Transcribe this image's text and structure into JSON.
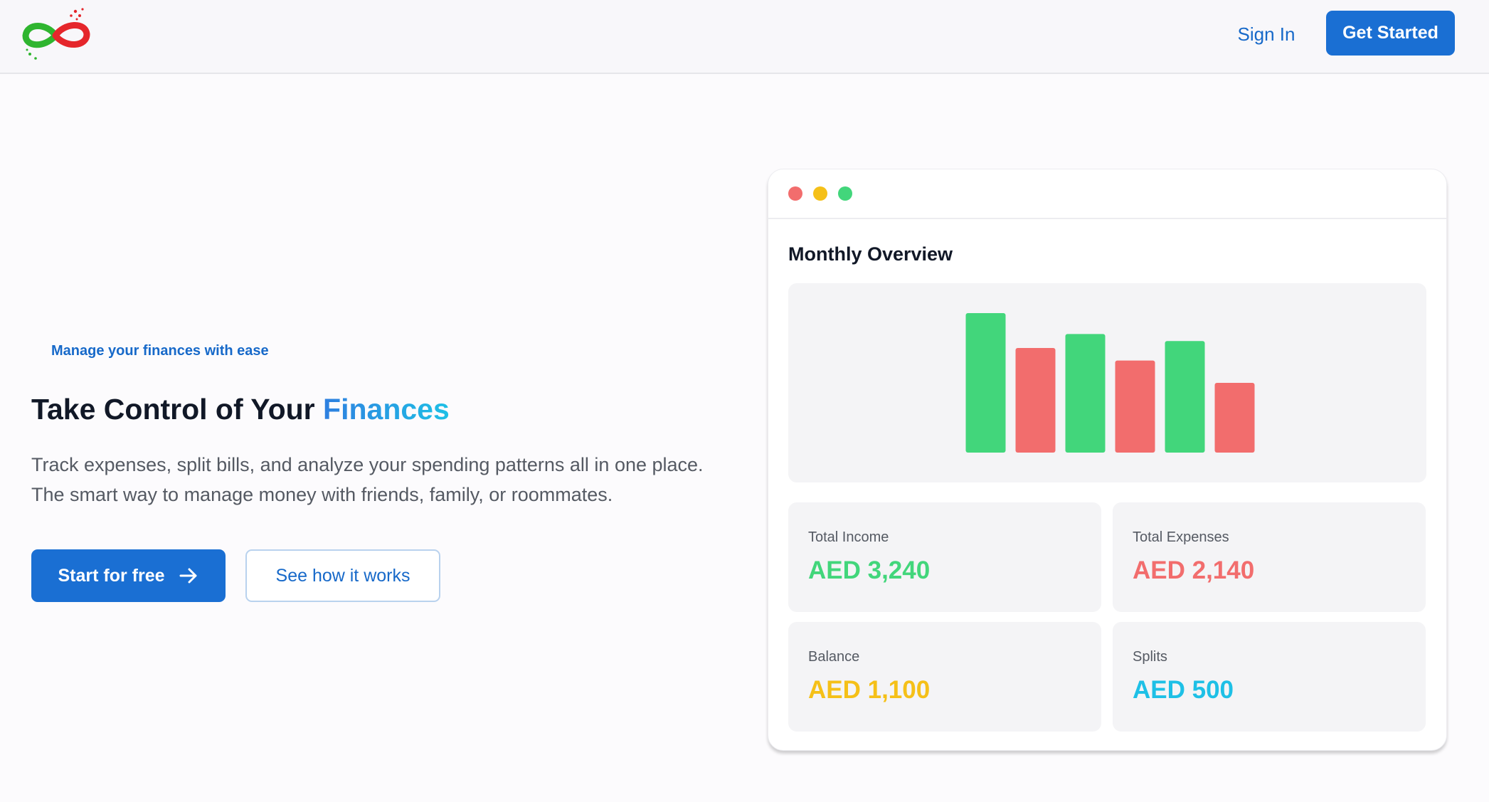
{
  "header": {
    "logo_icon": "infinity-logo-icon",
    "sign_in_label": "Sign In",
    "get_started_label": "Get Started"
  },
  "hero": {
    "tagline": "Manage your finances with ease",
    "headline_prefix": "Take Control of Your ",
    "headline_accent": "Finances",
    "description": "Track expenses, split bills, and analyze your spending patterns all in one place. The smart way to manage money with friends, family, or roommates.",
    "primary_cta_label": "Start for free",
    "primary_cta_icon": "arrow-right-icon",
    "secondary_cta_label": "See how it works"
  },
  "dashboard": {
    "window_controls": [
      "close-dot",
      "minimize-dot",
      "maximize-dot"
    ],
    "title": "Monthly Overview",
    "stats": [
      {
        "label": "Total Income",
        "value": "AED 3,240",
        "color": "#42d67b"
      },
      {
        "label": "Total Expenses",
        "value": "AED 2,140",
        "color": "#f26d6d"
      },
      {
        "label": "Balance",
        "value": "AED 1,100",
        "color": "#f5c018"
      },
      {
        "label": "Splits",
        "value": "AED 500",
        "color": "#1ec0e6"
      }
    ]
  },
  "chart_data": {
    "type": "bar",
    "values": [
      100,
      75,
      85,
      66,
      80,
      50
    ],
    "colors": [
      "#42d67b",
      "#f26d6d",
      "#42d67b",
      "#f26d6d",
      "#42d67b",
      "#f26d6d"
    ],
    "ylim": [
      0,
      100
    ],
    "grid": false
  },
  "colors": {
    "accent": "#1a6fd3",
    "income": "#42d67b",
    "expense": "#f26d6d",
    "balance": "#f5c018",
    "splits": "#1ec0e6"
  }
}
